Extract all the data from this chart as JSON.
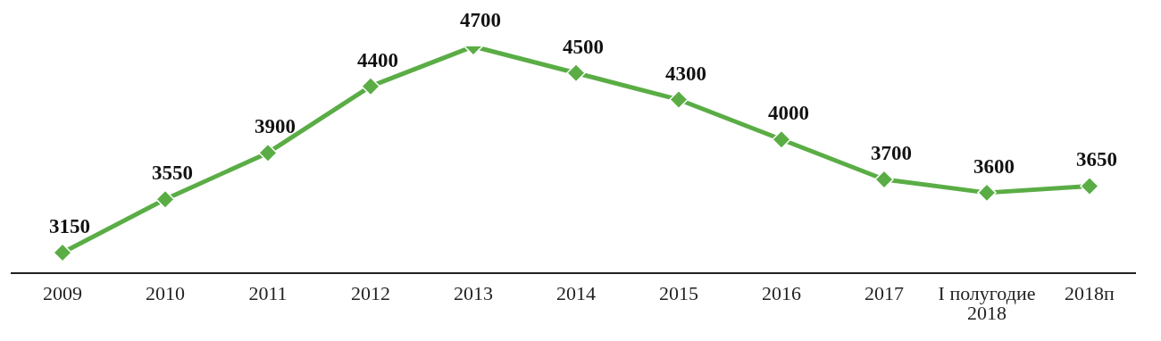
{
  "chart_data": {
    "type": "line",
    "categories": [
      "2009",
      "2010",
      "2011",
      "2012",
      "2013",
      "2014",
      "2015",
      "2016",
      "2017",
      "I полугодие 2018",
      "2018п"
    ],
    "series": [
      {
        "color": "#5aad45",
        "values": [
          3150,
          3550,
          3900,
          4400,
          4700,
          4500,
          4300,
          4000,
          3700,
          3600,
          3650
        ]
      }
    ],
    "data_labels": true,
    "marker": "diamond",
    "line_style": "solid",
    "grid": false,
    "legend": false
  }
}
